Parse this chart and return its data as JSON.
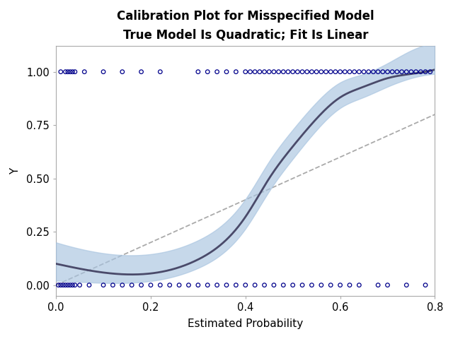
{
  "title": "Calibration Plot for Misspecified Model",
  "subtitle": "True Model Is Quadratic; Fit Is Linear",
  "xlabel": "Estimated Probability",
  "ylabel": "Y",
  "xlim": [
    0.0,
    0.8
  ],
  "ylim": [
    -0.05,
    1.12
  ],
  "yticks": [
    0.0,
    0.25,
    0.5,
    0.75,
    1.0
  ],
  "xticks": [
    0.0,
    0.2,
    0.4,
    0.6,
    0.8
  ],
  "background_color": "#ffffff",
  "plot_bg_color": "#ffffff",
  "scatter_color": "#00008B",
  "curve_color": "#4a4a6a",
  "band_color": "#a8c4e0",
  "diag_color": "#aaaaaa",
  "x_y1": [
    0.01,
    0.02,
    0.025,
    0.03,
    0.035,
    0.04,
    0.06,
    0.1,
    0.14,
    0.18,
    0.22,
    0.3,
    0.32,
    0.34,
    0.36,
    0.38,
    0.4,
    0.41,
    0.42,
    0.43,
    0.44,
    0.45,
    0.46,
    0.47,
    0.48,
    0.49,
    0.5,
    0.51,
    0.52,
    0.53,
    0.54,
    0.55,
    0.56,
    0.57,
    0.58,
    0.59,
    0.6,
    0.61,
    0.62,
    0.63,
    0.64,
    0.65,
    0.66,
    0.67,
    0.68,
    0.69,
    0.7,
    0.71,
    0.72,
    0.73,
    0.74,
    0.75,
    0.76,
    0.77,
    0.78,
    0.79
  ],
  "x_y0": [
    0.005,
    0.01,
    0.015,
    0.02,
    0.025,
    0.03,
    0.035,
    0.04,
    0.05,
    0.07,
    0.1,
    0.12,
    0.14,
    0.16,
    0.18,
    0.2,
    0.22,
    0.24,
    0.26,
    0.28,
    0.3,
    0.32,
    0.34,
    0.36,
    0.38,
    0.4,
    0.42,
    0.44,
    0.46,
    0.48,
    0.5,
    0.52,
    0.54,
    0.56,
    0.58,
    0.6,
    0.62,
    0.64,
    0.68,
    0.7,
    0.74,
    0.78
  ]
}
